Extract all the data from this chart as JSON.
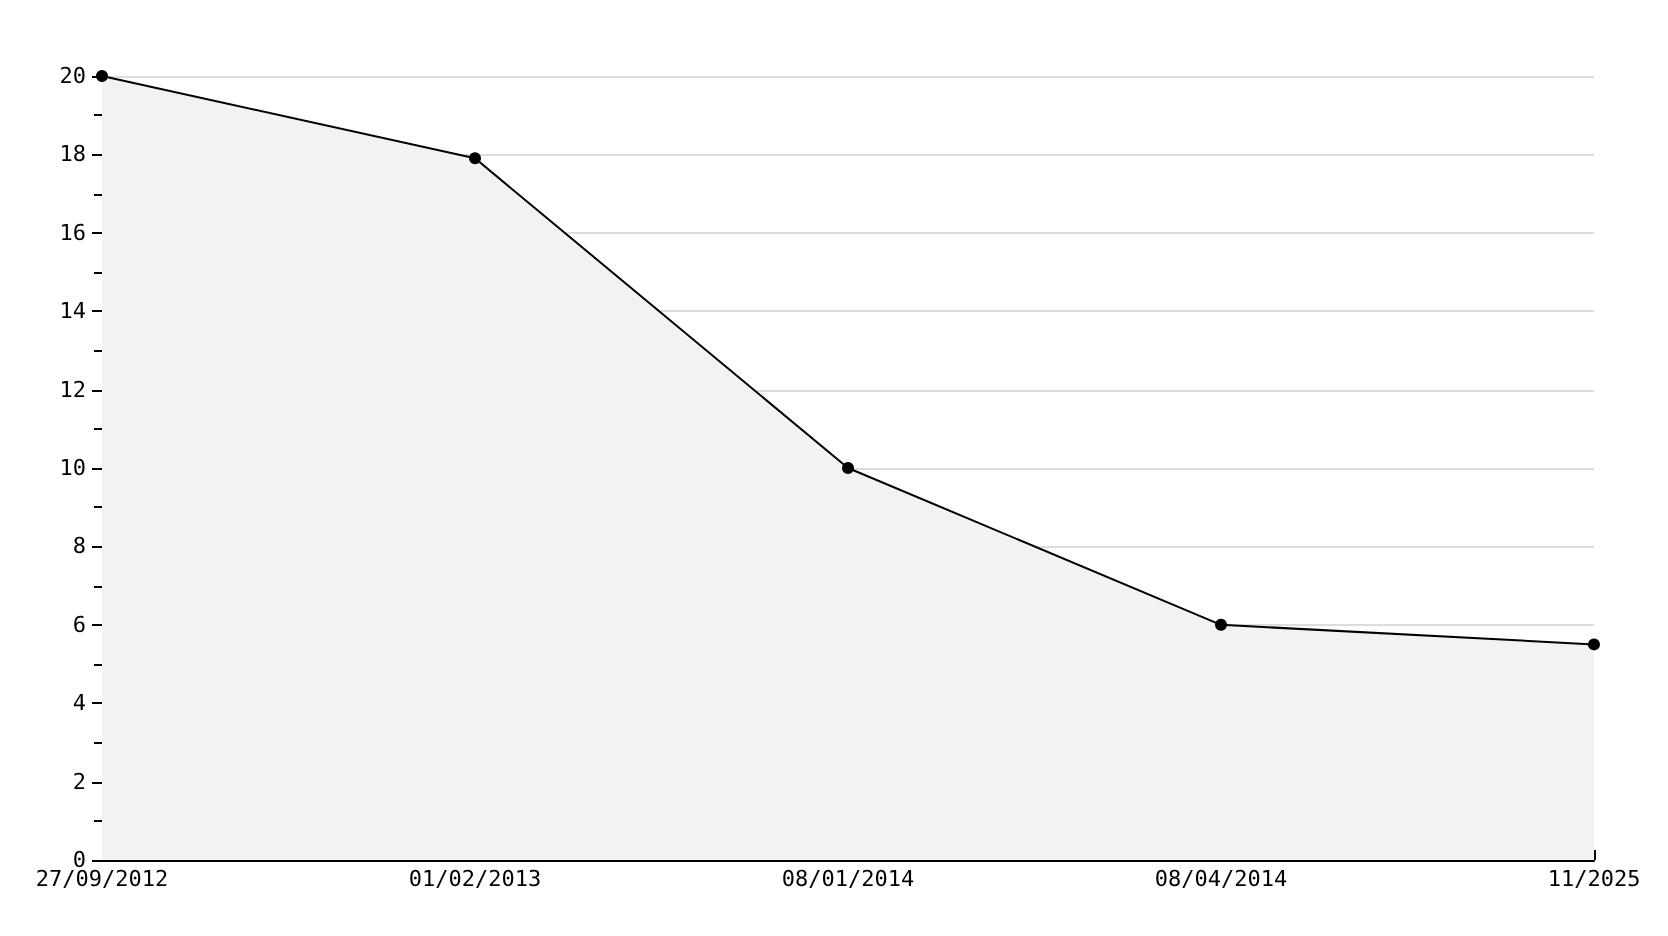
{
  "chart_data": {
    "type": "area",
    "categories": [
      "27/09/2012",
      "01/02/2013",
      "08/01/2014",
      "08/04/2014",
      "11/2025"
    ],
    "series": [
      {
        "color": "#000000",
        "values": [
          20,
          17.9,
          10,
          6,
          5.5
        ]
      }
    ],
    "ylim": [
      0,
      20
    ],
    "yticks": [
      0,
      2,
      4,
      6,
      8,
      10,
      12,
      14,
      16,
      18,
      20
    ],
    "grid": "y",
    "marker": "circle",
    "line_style": "solid"
  }
}
